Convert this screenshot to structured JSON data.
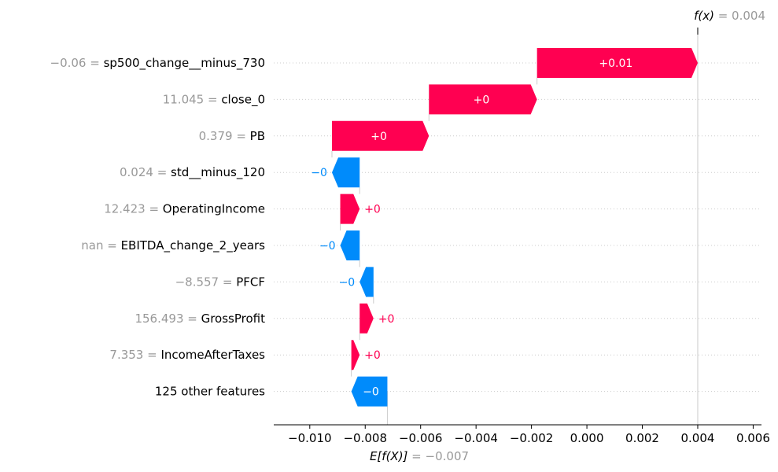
{
  "chart_data": {
    "type": "waterfall",
    "fx_label": "f(x)",
    "fx_value": "0.004",
    "base_label": "E[f(X)]",
    "base_value": "−0.007",
    "base_value_num": -0.0072,
    "final_value_num": 0.004,
    "xlim": [
      -0.0113,
      0.0063
    ],
    "x_ticks": [
      -0.01,
      -0.008,
      -0.006,
      -0.004,
      -0.002,
      0.0,
      0.002,
      0.004,
      0.006
    ],
    "x_tick_labels": [
      "−0.010",
      "−0.008",
      "−0.006",
      "−0.004",
      "−0.002",
      "0.000",
      "0.002",
      "0.004",
      "0.006"
    ],
    "rows": [
      {
        "value": "−0.06",
        "feature": "sp500_change__minus_730",
        "start": -0.0018,
        "end": 0.004,
        "label": "+0.01"
      },
      {
        "value": "11.045",
        "feature": "close_0",
        "start": -0.0057,
        "end": -0.0018,
        "label": "+0"
      },
      {
        "value": "0.379",
        "feature": "PB",
        "start": -0.0092,
        "end": -0.0057,
        "label": "+0"
      },
      {
        "value": "0.024",
        "feature": "std__minus_120",
        "start": -0.0082,
        "end": -0.0092,
        "label": "−0"
      },
      {
        "value": "12.423",
        "feature": "OperatingIncome",
        "start": -0.0089,
        "end": -0.0082,
        "label": "+0"
      },
      {
        "value": "nan",
        "feature": "EBITDA_change_2_years",
        "start": -0.0082,
        "end": -0.0089,
        "label": "−0"
      },
      {
        "value": "−8.557",
        "feature": "PFCF",
        "start": -0.0077,
        "end": -0.0082,
        "label": "−0"
      },
      {
        "value": "156.493",
        "feature": "GrossProfit",
        "start": -0.0082,
        "end": -0.0077,
        "label": "+0"
      },
      {
        "value": "7.353",
        "feature": "IncomeAfterTaxes",
        "start": -0.0085,
        "end": -0.0082,
        "label": "+0"
      },
      {
        "value": "",
        "feature": "125 other features",
        "start": -0.0072,
        "end": -0.0085,
        "label": "−0"
      }
    ],
    "colors": {
      "positive": "#ff0051",
      "negative": "#008bfb",
      "value_text": "#999999",
      "grid": "#cccccc"
    },
    "grid": true
  }
}
